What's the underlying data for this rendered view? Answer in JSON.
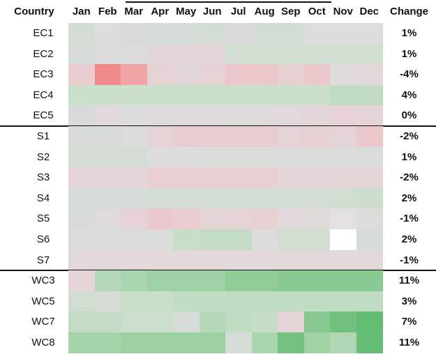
{
  "table": {
    "header": [
      "Country",
      "Jan",
      "Feb",
      "Mar",
      "Apr",
      "May",
      "Jun",
      "Jul",
      "Aug",
      "Sep",
      "Oct",
      "Nov",
      "Dec",
      "Change"
    ],
    "groups": [
      [
        {
          "label": "EC1",
          "colors": [
            "#d4ddd4",
            "#dddddd",
            "#dadada",
            "#d6dcd6",
            "#d6dcd6",
            "#d4ddd4",
            "#dadada",
            "#d4ddd4",
            "#d4ddd4",
            "#dddddd",
            "#dddddd",
            "#dddddd"
          ],
          "change": "1%"
        },
        {
          "label": "EC2",
          "colors": [
            "#d8dcd8",
            "#dcdcdc",
            "#dcdcdc",
            "#e2d6d8",
            "#e2d6d8",
            "#e2d6d8",
            "#d2dfd2",
            "#d2dfd2",
            "#d2dfd2",
            "#d2dfd2",
            "#d2dfd2",
            "#d2dfd2"
          ],
          "change": "1%"
        },
        {
          "label": "EC3",
          "colors": [
            "#e8cccf",
            "#f08a8c",
            "#f0a4a6",
            "#e4d2d4",
            "#e2d6d8",
            "#e4d2d4",
            "#ebc6ca",
            "#ebc6ca",
            "#e6d0d2",
            "#eac8cc",
            "#e0dcdc",
            "#e2d8da"
          ],
          "change": "-4%"
        },
        {
          "label": "EC4",
          "colors": [
            "#cadfca",
            "#cadfca",
            "#cadfca",
            "#cadfca",
            "#cadfca",
            "#cadfca",
            "#cadfca",
            "#cadfca",
            "#cadfca",
            "#cadfca",
            "#c0dcc2",
            "#c2dcc4"
          ],
          "change": "4%"
        },
        {
          "label": "EC5",
          "colors": [
            "#d8dada",
            "#e0d8da",
            "#dcdcdc",
            "#dcdada",
            "#dcdada",
            "#dcdada",
            "#dedada",
            "#dedada",
            "#e0d8da",
            "#e2d6d8",
            "#e6d2d4",
            "#e4d6d8"
          ],
          "change": "0%"
        }
      ],
      [
        {
          "label": "S1",
          "colors": [
            "#d8dcd8",
            "#d8dcd8",
            "#dadcda",
            "#e4d4d6",
            "#e8cdd0",
            "#e8cdd0",
            "#e8cdd0",
            "#e8cdd0",
            "#e4d2d4",
            "#e6d0d2",
            "#e4d4d6",
            "#eac8cc"
          ],
          "change": "-2%"
        },
        {
          "label": "S2",
          "colors": [
            "#d4ddd4",
            "#d4ddd4",
            "#d4ddd4",
            "#dcdcdc",
            "#dcdcdc",
            "#dadcda",
            "#dadcda",
            "#dadcda",
            "#dadcda",
            "#dadcda",
            "#dadcda",
            "#dadcda"
          ],
          "change": "1%"
        },
        {
          "label": "S3",
          "colors": [
            "#e4d4d6",
            "#e4d4d6",
            "#e4d4d6",
            "#e8d0d2",
            "#e8d0d2",
            "#e8d0d2",
            "#e8d0d2",
            "#e8d0d2",
            "#e4d4d6",
            "#e4d4d6",
            "#e4d4d6",
            "#e4d4d6"
          ],
          "change": "-2%"
        },
        {
          "label": "S4",
          "colors": [
            "#d6dcd6",
            "#d6dcd6",
            "#d6dcd6",
            "#d4ddd4",
            "#d4ddd4",
            "#d4ddd4",
            "#d4ddd4",
            "#d4ddd4",
            "#d4ddd4",
            "#d4ddd4",
            "#d2ddd2",
            "#ccdcce"
          ],
          "change": "2%"
        },
        {
          "label": "S5",
          "colors": [
            "#d8dcd8",
            "#dedada",
            "#e6d2d4",
            "#ebc8cc",
            "#e8ccd0",
            "#e4d4d6",
            "#e4d2d4",
            "#e6d0d2",
            "#e0d8da",
            "#dedada",
            "#e2e0e0",
            "#dadcda"
          ],
          "change": "-1%"
        },
        {
          "label": "S6",
          "colors": [
            "#dadcda",
            "#dadcda",
            "#dadcda",
            "#dadcda",
            "#c8ddc8",
            "#c4dcc6",
            "#c4dcc6",
            "#dcdcdc",
            "#d2ddd2",
            "#d2ddd2",
            "#ffffff",
            "#d6dcd6"
          ],
          "change": "2%"
        },
        {
          "label": "S7",
          "colors": [
            "#e2d8da",
            "#e2d8da",
            "#e2d8da",
            "#e2d8da",
            "#e2d8da",
            "#e2d8da",
            "#e2d8da",
            "#e2d8da",
            "#e2d8da",
            "#e2d8da",
            "#e2d8da",
            "#e2d8da"
          ],
          "change": "-1%"
        }
      ],
      [
        {
          "label": "WC3",
          "colors": [
            "#e6d4d6",
            "#b4d8b8",
            "#a8d4ae",
            "#9ed2a6",
            "#9ed2a6",
            "#9ed2a6",
            "#90cc98",
            "#90cc98",
            "#88ca92",
            "#88ca92",
            "#88ca92",
            "#88ca92"
          ],
          "change": "11%"
        },
        {
          "label": "WC5",
          "colors": [
            "#d2ddd2",
            "#d6dcd6",
            "#cadfca",
            "#cadfca",
            "#c0dcc2",
            "#c0dcc2",
            "#c0dcc2",
            "#c0dcc2",
            "#c0dcc2",
            "#c0dcc2",
            "#c0dcc2",
            "#c0dcc2"
          ],
          "change": "3%"
        },
        {
          "label": "WC7",
          "colors": [
            "#c4dcc6",
            "#c4dcc6",
            "#cedece",
            "#cedece",
            "#d8dcd8",
            "#b4d8b8",
            "#c0dcc2",
            "#c8ddc8",
            "#e4d6d8",
            "#86c890",
            "#70c07e",
            "#62bc72"
          ],
          "change": "7%"
        },
        {
          "label": "WC8",
          "colors": [
            "#a4d4aa",
            "#a4d4aa",
            "#9cd2a2",
            "#9cd2a2",
            "#9cd2a2",
            "#9cd2a2",
            "#d6dcd6",
            "#a8d4ae",
            "#74c280",
            "#a0d2a6",
            "#b0d6b4",
            "#66bd76"
          ],
          "change": "11%"
        }
      ]
    ]
  }
}
